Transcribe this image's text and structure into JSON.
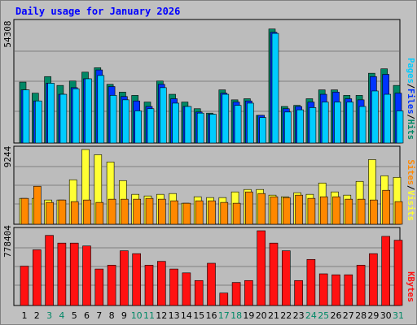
{
  "colors": {
    "frame_bg": "#c0c0c0",
    "plot_bg": "#bcbcbc",
    "grid": "#808080",
    "title": "#0000ff",
    "pages": "#00ccff",
    "files": "#0033ff",
    "hits": "#008866",
    "visits": "#ffff33",
    "sites": "#ff8800",
    "kbytes": "#ff1111",
    "weekend_day": "#008866",
    "weekday_day": "#000000"
  },
  "chart_data": {
    "type": "bar",
    "title": "Daily usage for January 2026",
    "days": [
      "1",
      "2",
      "3",
      "4",
      "5",
      "6",
      "7",
      "8",
      "9",
      "10",
      "11",
      "12",
      "13",
      "14",
      "15",
      "16",
      "17",
      "18",
      "19",
      "20",
      "21",
      "22",
      "23",
      "24",
      "25",
      "26",
      "27",
      "28",
      "29",
      "30",
      "31"
    ],
    "weekend_days": [
      "3",
      "4",
      "10",
      "11",
      "17",
      "18",
      "24",
      "25",
      "31"
    ],
    "panels": [
      {
        "id": "traffic",
        "ymax_label": "54308",
        "ymax": 54308,
        "legend": [
          "Pages",
          "Files",
          "Hits"
        ],
        "series": [
          {
            "name": "Hits",
            "values": [
              27500,
              22500,
              30000,
              26000,
              28000,
              32000,
              34000,
              26500,
              23000,
              21500,
              18500,
              28000,
              22000,
              18500,
              15500,
              13500,
              24000,
              19500,
              20000,
              12500,
              51500,
              16500,
              17000,
              20000,
              24000,
              24000,
              21500,
              21500,
              31500,
              33500,
              26000
            ]
          },
          {
            "name": "Files",
            "values": [
              24000,
              19000,
              27000,
              22000,
              25000,
              29000,
              33000,
              25500,
              21000,
              19000,
              16500,
              26500,
              20000,
              16500,
              14000,
              13000,
              22500,
              18500,
              19000,
              12500,
              50000,
              15500,
              16500,
              18500,
              22000,
              23000,
              20000,
              19500,
              30000,
              31000,
              22500
            ]
          },
          {
            "name": "Pages",
            "values": [
              24000,
              19000,
              27000,
              22000,
              24500,
              29000,
              30500,
              21500,
              19500,
              14500,
              15500,
              25000,
              18000,
              16500,
              13500,
              13000,
              22000,
              17000,
              18000,
              11500,
              49500,
              14000,
              15000,
              16000,
              18500,
              18500,
              18500,
              16500,
              23500,
              22000,
              14500
            ]
          }
        ]
      },
      {
        "id": "visitors",
        "ymax_label": "9244",
        "ymax": 9244,
        "legend": [
          "Sites",
          "Visits"
        ],
        "series": [
          {
            "name": "Visits",
            "values": [
              3200,
              3200,
              3000,
              3000,
              5500,
              9244,
              8600,
              7700,
              5400,
              3700,
              3500,
              3700,
              3800,
              2600,
              3400,
              3300,
              3300,
              4000,
              4300,
              4300,
              3600,
              3400,
              3900,
              3700,
              5100,
              4000,
              3600,
              5300,
              8000,
              6000,
              5800
            ]
          },
          {
            "name": "Sites",
            "values": [
              3200,
              4700,
              2700,
              3000,
              2800,
              3000,
              2700,
              3100,
              3100,
              3100,
              3200,
              3100,
              2900,
              2600,
              2900,
              2900,
              2700,
              2600,
              4000,
              3800,
              3400,
              3300,
              3600,
              3200,
              3400,
              3400,
              3100,
              3100,
              3000,
              4200,
              2800
            ]
          }
        ]
      },
      {
        "id": "kbytes",
        "ymax_label": "778404",
        "ymax": 778404,
        "legend": [
          "KBytes"
        ],
        "series": [
          {
            "name": "KBytes",
            "values": [
              410000,
              580000,
              730000,
              650000,
              650000,
              620000,
              380000,
              420000,
              570000,
              540000,
              420000,
              460000,
              380000,
              340000,
              260000,
              440000,
              130000,
              240000,
              260000,
              778404,
              650000,
              570000,
              260000,
              480000,
              330000,
              320000,
              320000,
              420000,
              540000,
              720000,
              680000
            ]
          }
        ]
      }
    ]
  }
}
